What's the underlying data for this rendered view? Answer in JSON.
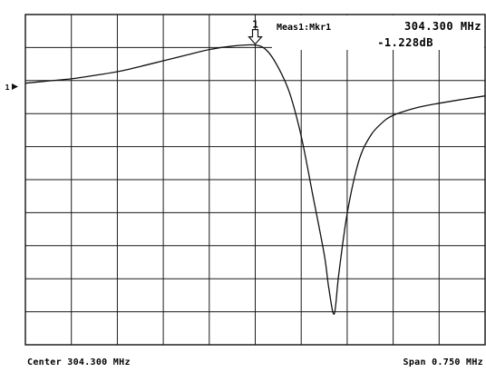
{
  "header": {
    "marker_readout_label": "Meas1:Mkr1",
    "marker_frequency": "304.300 MHz",
    "marker_level": "-1.228dB"
  },
  "footer": {
    "center_label": "Center 304.300 MHz",
    "span_label": "Span 0.750 MHz"
  },
  "reference_marker": {
    "label": "1"
  },
  "colors": {
    "trace": "#111111",
    "grid": "#1a1a1a",
    "background": "#ffffff"
  },
  "chart_data": {
    "type": "line",
    "title": "",
    "xlabel": "",
    "ylabel": "",
    "x_unit": "MHz",
    "y_unit": "dB",
    "xlim": [
      303.925,
      304.675
    ],
    "ylim": [
      -23.92,
      1.08
    ],
    "grid": true,
    "grid_divisions": {
      "x": 10,
      "y": 10
    },
    "series": [
      {
        "values": [
          {
            "x": 303.925,
            "y": -4.12
          },
          {
            "x": 303.9625,
            "y": -3.95
          },
          {
            "x": 304.0,
            "y": -3.79
          },
          {
            "x": 304.0375,
            "y": -3.53
          },
          {
            "x": 304.075,
            "y": -3.25
          },
          {
            "x": 304.1125,
            "y": -2.85
          },
          {
            "x": 304.15,
            "y": -2.42
          },
          {
            "x": 304.1875,
            "y": -1.99
          },
          {
            "x": 304.225,
            "y": -1.57
          },
          {
            "x": 304.2625,
            "y": -1.31
          },
          {
            "x": 304.3,
            "y": -1.23
          },
          {
            "x": 304.3188,
            "y": -1.64
          },
          {
            "x": 304.3375,
            "y": -2.92
          },
          {
            "x": 304.3563,
            "y": -4.89
          },
          {
            "x": 304.375,
            "y": -8.13
          },
          {
            "x": 304.3938,
            "y": -12.57
          },
          {
            "x": 304.4125,
            "y": -17.08
          },
          {
            "x": 304.42,
            "y": -19.62
          },
          {
            "x": 304.4288,
            "y": -21.59
          },
          {
            "x": 304.4363,
            "y": -18.59
          },
          {
            "x": 304.45,
            "y": -13.98
          },
          {
            "x": 304.4688,
            "y": -10.03
          },
          {
            "x": 304.4875,
            "y": -8.13
          },
          {
            "x": 304.5063,
            "y": -7.14
          },
          {
            "x": 304.525,
            "y": -6.55
          },
          {
            "x": 304.5625,
            "y": -5.99
          },
          {
            "x": 304.6,
            "y": -5.64
          },
          {
            "x": 304.6375,
            "y": -5.35
          },
          {
            "x": 304.675,
            "y": -5.08
          }
        ]
      }
    ],
    "marker": {
      "label": "1",
      "x": 304.3,
      "y": -1.228
    }
  }
}
